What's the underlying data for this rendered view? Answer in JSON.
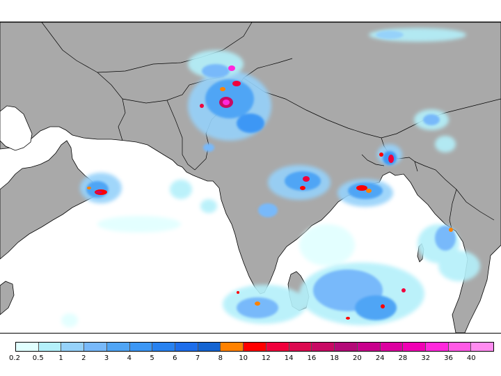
{
  "map": {
    "region": "South Asia, Arabian Sea and Bay of Bengal",
    "colors": {
      "land": "#a9a9a9",
      "ocean": "#ffffff",
      "border": "#000000"
    }
  },
  "legend": {
    "labels": [
      "0.2",
      "0.5",
      "1",
      "2",
      "3",
      "4",
      "5",
      "6",
      "7",
      "8",
      "10",
      "12",
      "14",
      "16",
      "18",
      "20",
      "24",
      "28",
      "32",
      "36",
      "40"
    ],
    "colors": [
      "#e1ffff",
      "#b4f0fa",
      "#96d2fa",
      "#78b9fa",
      "#50a5f5",
      "#3c97f5",
      "#2882f0",
      "#1e6eeb",
      "#1464d2",
      "#ff8200",
      "#ff0000",
      "#f0003c",
      "#dc0a50",
      "#c80a64",
      "#b40a78",
      "#c8008c",
      "#dc00a0",
      "#f000b4",
      "#ff28dc",
      "#ff5ae6",
      "#ff8cf0"
    ]
  }
}
